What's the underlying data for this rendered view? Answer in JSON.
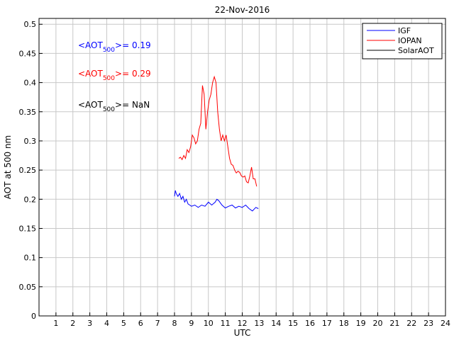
{
  "chart_data": {
    "type": "line",
    "title": "22-Nov-2016",
    "xlabel": "UTC",
    "ylabel": "AOT at 500 nm",
    "xlim": [
      0,
      24
    ],
    "ylim": [
      0,
      0.51
    ],
    "xticks": [
      1,
      2,
      3,
      4,
      5,
      6,
      7,
      8,
      9,
      10,
      11,
      12,
      13,
      14,
      15,
      16,
      17,
      18,
      19,
      20,
      21,
      22,
      23,
      24
    ],
    "yticks": [
      0,
      0.05,
      0.1,
      0.15,
      0.2,
      0.25,
      0.3,
      0.35,
      0.4,
      0.45,
      0.5
    ],
    "ytick_labels": [
      "0",
      "0.05",
      "0.1",
      "0.15",
      "0.2",
      "0.25",
      "0.3",
      "0.35",
      "0.4",
      "0.45",
      "0.5"
    ],
    "grid": true,
    "legend_position": "top-right",
    "series": [
      {
        "name": "IGF",
        "color": "#0000ff",
        "x": [
          8.0,
          8.05,
          8.1,
          8.2,
          8.3,
          8.4,
          8.5,
          8.6,
          8.7,
          8.8,
          8.9,
          9.0,
          9.2,
          9.4,
          9.6,
          9.8,
          10.0,
          10.2,
          10.4,
          10.5,
          10.6,
          10.8,
          11.0,
          11.2,
          11.4,
          11.6,
          11.8,
          12.0,
          12.2,
          12.4,
          12.6,
          12.8,
          12.95
        ],
        "y": [
          0.205,
          0.215,
          0.21,
          0.205,
          0.21,
          0.2,
          0.205,
          0.195,
          0.2,
          0.192,
          0.19,
          0.188,
          0.19,
          0.186,
          0.19,
          0.188,
          0.195,
          0.19,
          0.195,
          0.2,
          0.198,
          0.19,
          0.185,
          0.188,
          0.19,
          0.185,
          0.188,
          0.186,
          0.19,
          0.184,
          0.18,
          0.186,
          0.184
        ]
      },
      {
        "name": "IOPAN",
        "color": "#ff0000",
        "x": [
          8.25,
          8.35,
          8.45,
          8.55,
          8.65,
          8.75,
          8.85,
          8.95,
          9.05,
          9.15,
          9.25,
          9.35,
          9.45,
          9.55,
          9.65,
          9.75,
          9.85,
          9.95,
          10.05,
          10.15,
          10.25,
          10.35,
          10.45,
          10.55,
          10.65,
          10.75,
          10.85,
          10.95,
          11.05,
          11.15,
          11.25,
          11.35,
          11.45,
          11.55,
          11.65,
          11.75,
          11.85,
          11.95,
          12.05,
          12.15,
          12.25,
          12.35,
          12.45,
          12.55,
          12.65,
          12.75,
          12.85
        ],
        "y": [
          0.27,
          0.272,
          0.268,
          0.275,
          0.27,
          0.285,
          0.28,
          0.29,
          0.31,
          0.305,
          0.295,
          0.3,
          0.32,
          0.33,
          0.395,
          0.38,
          0.32,
          0.35,
          0.37,
          0.38,
          0.4,
          0.41,
          0.4,
          0.35,
          0.32,
          0.3,
          0.31,
          0.3,
          0.31,
          0.29,
          0.27,
          0.26,
          0.258,
          0.25,
          0.245,
          0.248,
          0.246,
          0.24,
          0.238,
          0.24,
          0.23,
          0.228,
          0.24,
          0.255,
          0.235,
          0.235,
          0.222
        ]
      },
      {
        "name": "SolarAOT",
        "color": "#000000",
        "x": [],
        "y": []
      }
    ],
    "annotations": [
      {
        "prefix": "<AOT",
        "sub": "500",
        "suffix": ">= 0.19",
        "color": "#0000ff"
      },
      {
        "prefix": "<AOT",
        "sub": "500",
        "suffix": ">= 0.29",
        "color": "#ff0000"
      },
      {
        "prefix": "<AOT",
        "sub": "500",
        "suffix": ">=  NaN",
        "color": "#000000"
      }
    ]
  }
}
